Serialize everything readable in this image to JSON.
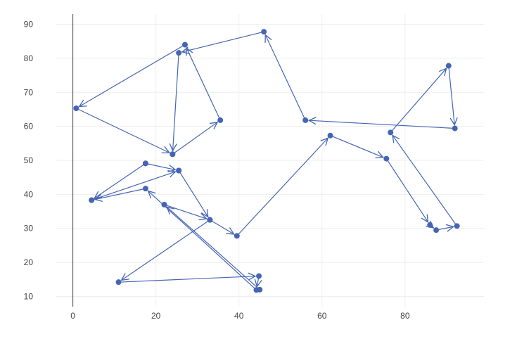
{
  "chart_data": {
    "type": "scatter",
    "mode": "lines+markers+arrows",
    "title": "",
    "xlabel": "",
    "ylabel": "",
    "xlim": [
      -4,
      99
    ],
    "ylim": [
      7,
      93
    ],
    "x_ticks": [
      0,
      20,
      40,
      60,
      80
    ],
    "y_ticks": [
      10,
      20,
      30,
      40,
      50,
      60,
      70,
      80,
      90
    ],
    "grid": true,
    "color": "#4565b4",
    "series": [
      {
        "points": [
          {
            "x": 45.0,
            "y": 12.0
          },
          {
            "x": 22.0,
            "y": 37.0
          },
          {
            "x": 33.0,
            "y": 32.5
          },
          {
            "x": 11.0,
            "y": 14.2
          },
          {
            "x": 44.8,
            "y": 16.0
          },
          {
            "x": 44.2,
            "y": 11.9
          },
          {
            "x": 17.5,
            "y": 41.7
          },
          {
            "x": 4.5,
            "y": 38.3
          },
          {
            "x": 25.5,
            "y": 47.0
          },
          {
            "x": 33.0,
            "y": 32.5
          },
          {
            "x": 39.5,
            "y": 27.8
          },
          {
            "x": 62.0,
            "y": 57.3
          },
          {
            "x": 75.5,
            "y": 50.5
          },
          {
            "x": 86.0,
            "y": 31.0
          },
          {
            "x": 87.5,
            "y": 29.5
          },
          {
            "x": 92.5,
            "y": 30.7
          },
          {
            "x": 76.5,
            "y": 58.2
          },
          {
            "x": 90.5,
            "y": 77.8
          },
          {
            "x": 92.0,
            "y": 59.4
          },
          {
            "x": 56.0,
            "y": 61.8
          },
          {
            "x": 46.0,
            "y": 87.8
          },
          {
            "x": 25.5,
            "y": 81.6
          },
          {
            "x": 24.0,
            "y": 51.8
          },
          {
            "x": 35.5,
            "y": 61.8
          },
          {
            "x": 27.0,
            "y": 84.0
          },
          {
            "x": 0.8,
            "y": 65.3
          },
          {
            "x": 24.0,
            "y": 51.8
          }
        ]
      },
      {
        "points": [
          {
            "x": 17.5,
            "y": 49.1
          },
          {
            "x": 4.5,
            "y": 38.3
          }
        ]
      },
      {
        "points": [
          {
            "x": 17.5,
            "y": 49.1
          },
          {
            "x": 25.5,
            "y": 47.0
          }
        ]
      }
    ]
  }
}
